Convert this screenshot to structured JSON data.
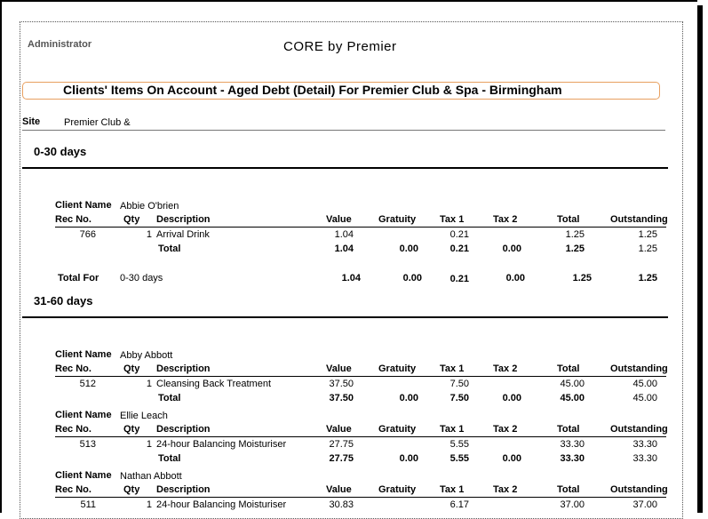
{
  "header": {
    "user": "Administrator",
    "app_title": "CORE by Premier",
    "report_title": "Clients' Items On Account - Aged Debt (Detail) For Premier Club & Spa - Birmingham"
  },
  "site": {
    "label": "Site",
    "value": "Premier Club &"
  },
  "columns": [
    "Rec No.",
    "Qty",
    "Description",
    "Value",
    "Gratuity",
    "Tax 1",
    "Tax 2",
    "Total",
    "Outstanding"
  ],
  "client_name_label": "Client Name",
  "total_label": "Total",
  "total_for_label": "Total For",
  "sections": [
    {
      "title": "0-30 days",
      "clients": [
        {
          "name": "Abbie O'brien",
          "items": [
            {
              "rec": "766",
              "qty": "1",
              "desc": "Arrival Drink",
              "value": "1.04",
              "gratuity": "",
              "tax1": "0.21",
              "tax2": "",
              "total": "1.25",
              "outstanding": "1.25"
            }
          ],
          "totals": {
            "value": "1.04",
            "gratuity": "0.00",
            "tax1": "0.21",
            "tax2": "0.00",
            "total": "1.25",
            "outstanding": "1.25"
          }
        }
      ],
      "section_total": {
        "label_value": "0-30 days",
        "value": "1.04",
        "gratuity": "0.00",
        "tax1": "0.21",
        "tax2": "0.00",
        "total": "1.25",
        "outstanding": "1.25"
      }
    },
    {
      "title": "31-60 days",
      "clients": [
        {
          "name": "Abby Abbott",
          "items": [
            {
              "rec": "512",
              "qty": "1",
              "desc": "Cleansing Back Treatment",
              "value": "37.50",
              "gratuity": "",
              "tax1": "7.50",
              "tax2": "",
              "total": "45.00",
              "outstanding": "45.00"
            }
          ],
          "totals": {
            "value": "37.50",
            "gratuity": "0.00",
            "tax1": "7.50",
            "tax2": "0.00",
            "total": "45.00",
            "outstanding": "45.00"
          }
        },
        {
          "name": "Ellie Leach",
          "items": [
            {
              "rec": "513",
              "qty": "1",
              "desc": "24-hour Balancing Moisturiser",
              "value": "27.75",
              "gratuity": "",
              "tax1": "5.55",
              "tax2": "",
              "total": "33.30",
              "outstanding": "33.30"
            }
          ],
          "totals": {
            "value": "27.75",
            "gratuity": "0.00",
            "tax1": "5.55",
            "tax2": "0.00",
            "total": "33.30",
            "outstanding": "33.30"
          }
        },
        {
          "name": "Nathan Abbott",
          "items": [
            {
              "rec": "511",
              "qty": "1",
              "desc": "24-hour Balancing Moisturiser",
              "value": "30.83",
              "gratuity": "",
              "tax1": "6.17",
              "tax2": "",
              "total": "37.00",
              "outstanding": "37.00"
            }
          ]
        }
      ]
    }
  ]
}
